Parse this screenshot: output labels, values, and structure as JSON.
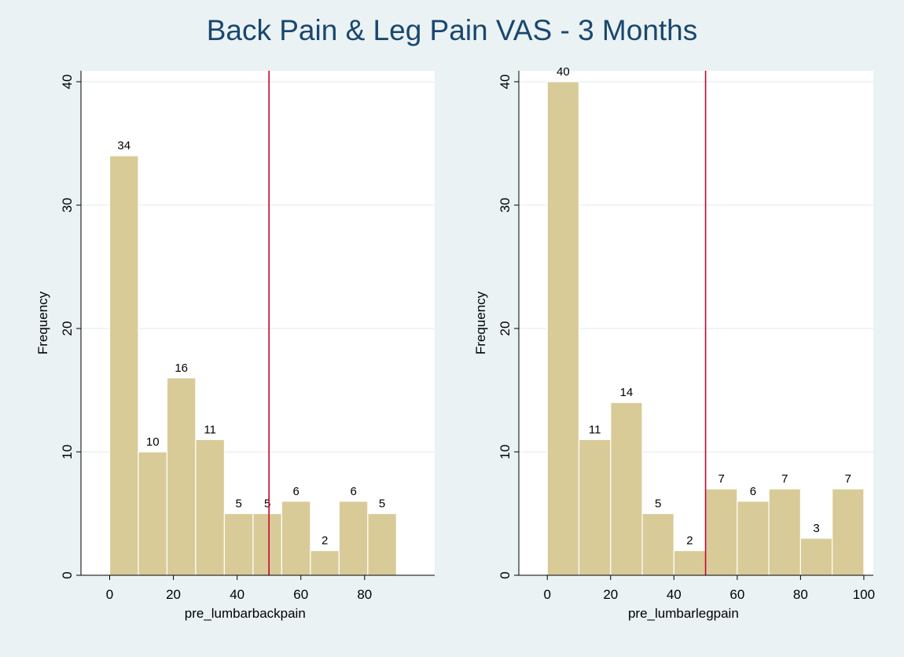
{
  "title": "Back Pain & Leg Pain VAS - 3 Months",
  "colors": {
    "background": "#eaf2f3",
    "plot": "#ffffff",
    "bar_fill": "#d8cb97",
    "bar_stroke": "#ffffff",
    "grid": "#eaf2f3",
    "refline": "#c10534",
    "title": "#1a476f"
  },
  "chart_data": [
    {
      "type": "bar",
      "xlabel": "pre_lumbarbackpain",
      "ylabel": "Frequency",
      "bin_width": 9,
      "bin_starts": [
        0,
        9,
        18,
        27,
        36,
        45,
        54,
        63,
        72,
        81
      ],
      "values": [
        34,
        10,
        16,
        11,
        5,
        5,
        6,
        2,
        6,
        5
      ],
      "xlim": [
        -9,
        102
      ],
      "ylim": [
        0,
        40
      ],
      "xticks": [
        0,
        20,
        40,
        60,
        80
      ],
      "yticks": [
        0,
        10,
        20,
        30,
        40
      ],
      "reference_line_x": 50,
      "grid": true
    },
    {
      "type": "bar",
      "xlabel": "pre_lumbarlegpain",
      "ylabel": "Frequency",
      "bin_width": 10,
      "bin_starts": [
        0,
        10,
        20,
        30,
        40,
        50,
        60,
        70,
        80,
        90
      ],
      "values": [
        40,
        11,
        14,
        5,
        2,
        7,
        6,
        7,
        3,
        7
      ],
      "xlim": [
        -9,
        103
      ],
      "ylim": [
        0,
        40
      ],
      "xticks": [
        0,
        20,
        40,
        60,
        80,
        100
      ],
      "yticks": [
        0,
        10,
        20,
        30,
        40
      ],
      "reference_line_x": 50,
      "grid": true
    }
  ]
}
